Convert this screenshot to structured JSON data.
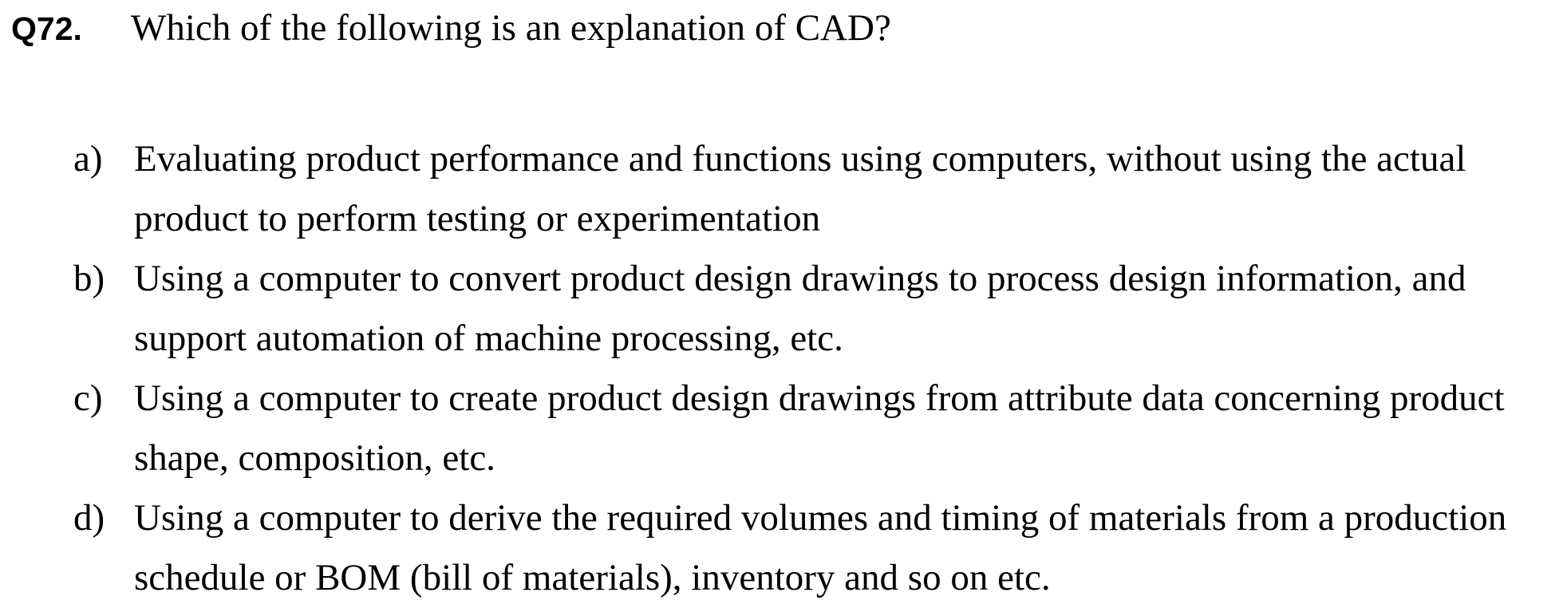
{
  "question": {
    "number": "Q72.",
    "text": "Which of the following is an explanation of CAD?"
  },
  "options": [
    {
      "label": "a)",
      "text": "Evaluating product performance and functions using computers, without using the actual product to perform testing or experimentation"
    },
    {
      "label": "b)",
      "text": "Using a computer to convert product design drawings to process design information, and support automation of machine processing, etc."
    },
    {
      "label": "c)",
      "text": "Using a computer to create product design drawings from attribute data concerning product shape, composition, etc."
    },
    {
      "label": "d)",
      "text": "Using a computer to derive the required volumes and timing of materials from a production schedule or BOM (bill of materials), inventory and so on etc."
    }
  ]
}
